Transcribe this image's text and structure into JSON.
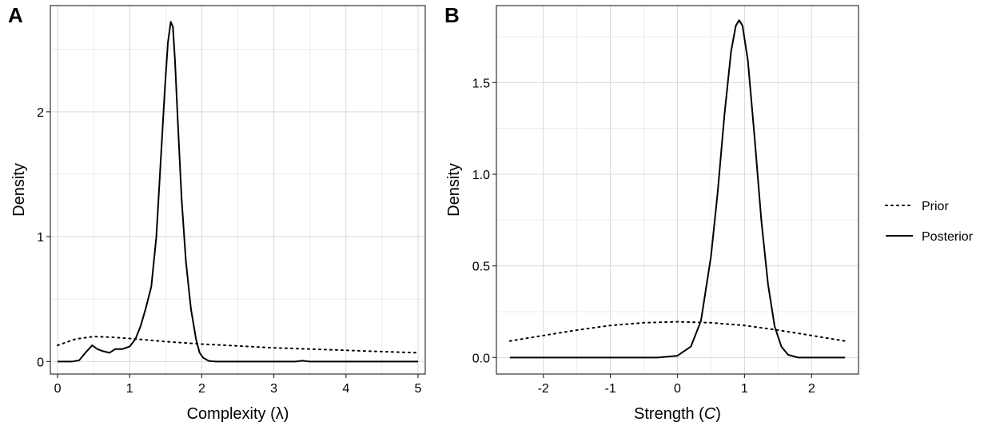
{
  "legend": {
    "entries": [
      {
        "label": "Prior",
        "linestyle": "dotted"
      },
      {
        "label": "Posterior",
        "linestyle": "solid"
      }
    ]
  },
  "chart_data": [
    {
      "type": "line",
      "panel_label": "A",
      "xlabel": "Complexity (λ)",
      "ylabel": "Density",
      "xlim": [
        -0.1,
        5.1
      ],
      "ylim": [
        -0.1,
        2.85
      ],
      "x_ticks": [
        0,
        1,
        2,
        3,
        4,
        5
      ],
      "y_ticks": [
        0,
        1,
        2
      ],
      "grid": true,
      "legend": "right",
      "series": [
        {
          "name": "Prior",
          "linestyle": "dotted",
          "x": [
            0,
            0.25,
            0.5,
            0.75,
            1,
            1.5,
            2,
            2.5,
            3,
            3.5,
            4,
            4.5,
            5
          ],
          "y": [
            0.13,
            0.18,
            0.2,
            0.195,
            0.185,
            0.16,
            0.14,
            0.125,
            0.11,
            0.1,
            0.09,
            0.08,
            0.07
          ]
        },
        {
          "name": "Posterior",
          "linestyle": "solid",
          "x": [
            0,
            0.2,
            0.3,
            0.4,
            0.48,
            0.55,
            0.62,
            0.72,
            0.8,
            0.9,
            1.0,
            1.08,
            1.15,
            1.22,
            1.3,
            1.37,
            1.43,
            1.49,
            1.53,
            1.57,
            1.6,
            1.63,
            1.67,
            1.72,
            1.78,
            1.85,
            1.92,
            1.97,
            2.02,
            2.1,
            2.2,
            3.0,
            3.3,
            3.4,
            3.5,
            5.0
          ],
          "y": [
            0,
            0,
            0.01,
            0.08,
            0.13,
            0.1,
            0.085,
            0.07,
            0.1,
            0.1,
            0.12,
            0.18,
            0.28,
            0.42,
            0.6,
            1.0,
            1.6,
            2.2,
            2.55,
            2.72,
            2.68,
            2.4,
            1.9,
            1.3,
            0.8,
            0.42,
            0.18,
            0.07,
            0.03,
            0.005,
            0,
            0,
            0,
            0.007,
            0,
            0
          ]
        }
      ]
    },
    {
      "type": "line",
      "panel_label": "B",
      "xlabel": "Strength (C)",
      "xlabel_plain": "Strength (",
      "xlabel_italic": "C",
      "xlabel_close": ")",
      "ylabel": "Density",
      "xlim": [
        -2.7,
        2.7
      ],
      "ylim": [
        -0.09,
        1.92
      ],
      "x_ticks": [
        -2,
        -1,
        0,
        1,
        2
      ],
      "y_ticks": [
        0.0,
        0.5,
        1.0,
        1.5
      ],
      "grid": true,
      "legend": "right",
      "series": [
        {
          "name": "Prior",
          "linestyle": "dotted",
          "x": [
            -2.5,
            -2,
            -1.5,
            -1,
            -0.5,
            0,
            0.5,
            1,
            1.5,
            2,
            2.5
          ],
          "y": [
            0.09,
            0.12,
            0.15,
            0.175,
            0.19,
            0.195,
            0.19,
            0.175,
            0.15,
            0.12,
            0.09
          ]
        },
        {
          "name": "Posterior",
          "linestyle": "solid",
          "x": [
            -2.5,
            -0.3,
            0,
            0.2,
            0.35,
            0.5,
            0.6,
            0.7,
            0.8,
            0.87,
            0.92,
            0.97,
            1.05,
            1.15,
            1.25,
            1.35,
            1.45,
            1.55,
            1.65,
            1.8,
            2.5
          ],
          "y": [
            0,
            0,
            0.01,
            0.06,
            0.2,
            0.55,
            0.9,
            1.32,
            1.67,
            1.81,
            1.84,
            1.81,
            1.62,
            1.2,
            0.75,
            0.4,
            0.17,
            0.06,
            0.015,
            0,
            0
          ]
        }
      ]
    }
  ]
}
